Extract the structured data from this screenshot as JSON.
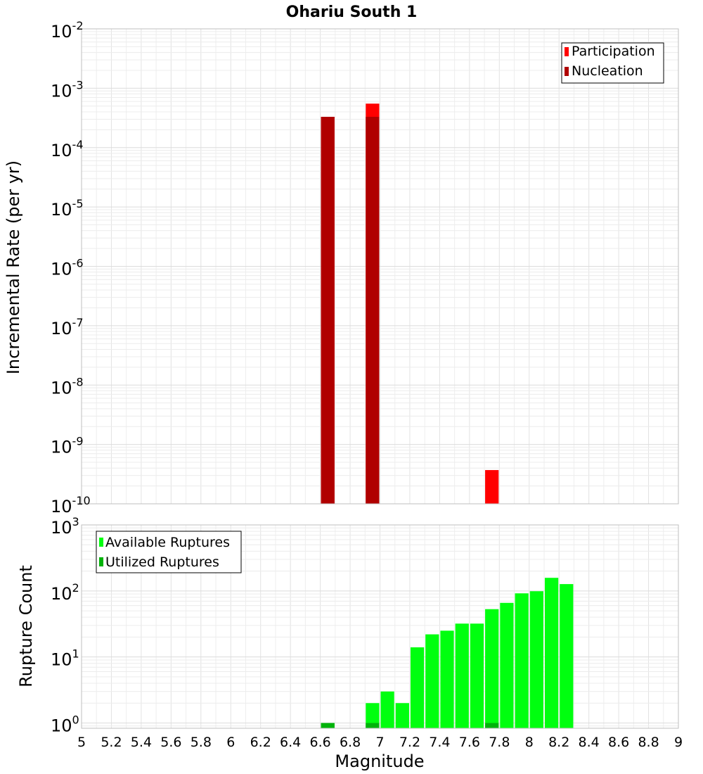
{
  "chart_data": [
    {
      "type": "bar",
      "title": "Ohariu South 1",
      "xlabel": "",
      "ylabel": "Incremental Rate (per yr)",
      "xlim": [
        5,
        9
      ],
      "ylim_log10": [
        -10,
        -2
      ],
      "bin_width": 0.1,
      "x_ticks": [
        "5",
        "5.2",
        "5.4",
        "5.6",
        "5.8",
        "6",
        "6.2",
        "6.4",
        "6.6",
        "6.8",
        "7",
        "7.2",
        "7.4",
        "7.6",
        "7.8",
        "8",
        "8.2",
        "8.4",
        "8.6",
        "8.8",
        "9"
      ],
      "y_ticks": [
        {
          "base": "10",
          "exp": "-2"
        },
        {
          "base": "10",
          "exp": "-3"
        },
        {
          "base": "10",
          "exp": "-4"
        },
        {
          "base": "10",
          "exp": "-5"
        },
        {
          "base": "10",
          "exp": "-6"
        },
        {
          "base": "10",
          "exp": "-7"
        },
        {
          "base": "10",
          "exp": "-8"
        },
        {
          "base": "10",
          "exp": "-9"
        },
        {
          "base": "10",
          "exp": "-10"
        }
      ],
      "legend_position": "top-right",
      "series": [
        {
          "name": "Participation",
          "color": "#ff0000",
          "x": [
            6.65,
            6.95,
            7.75
          ],
          "values": [
            0.00033,
            0.00055,
            3.7e-10
          ]
        },
        {
          "name": "Nucleation",
          "color": "#b00000",
          "x": [
            6.65,
            6.95
          ],
          "values": [
            0.00033,
            0.00033
          ]
        }
      ]
    },
    {
      "type": "bar",
      "title": "",
      "xlabel": "Magnitude",
      "ylabel": "Rupture Count",
      "xlim": [
        5,
        9
      ],
      "ylim_log10": [
        -0.08,
        3
      ],
      "bin_width": 0.1,
      "x_ticks": [
        "5",
        "5.2",
        "5.4",
        "5.6",
        "5.8",
        "6",
        "6.2",
        "6.4",
        "6.6",
        "6.8",
        "7",
        "7.2",
        "7.4",
        "7.6",
        "7.8",
        "8",
        "8.2",
        "8.4",
        "8.6",
        "8.8",
        "9"
      ],
      "y_ticks": [
        {
          "base": "10",
          "exp": "3"
        },
        {
          "base": "10",
          "exp": "2"
        },
        {
          "base": "10",
          "exp": "1"
        },
        {
          "base": "10",
          "exp": "0"
        }
      ],
      "legend_position": "top-left",
      "series": [
        {
          "name": "Available Ruptures",
          "color": "#00ff0f",
          "x": [
            6.65,
            6.95,
            7.05,
            7.15,
            7.25,
            7.35,
            7.45,
            7.55,
            7.65,
            7.75,
            7.85,
            7.95,
            8.05,
            8.15,
            8.25
          ],
          "values": [
            1,
            2,
            3,
            2,
            14,
            22,
            25,
            32,
            32,
            53,
            66,
            92,
            99,
            158,
            127
          ]
        },
        {
          "name": "Utilized Ruptures",
          "color": "#00b30a",
          "x": [
            6.65,
            6.95,
            7.75
          ],
          "values": [
            1,
            1,
            1
          ]
        }
      ]
    }
  ]
}
